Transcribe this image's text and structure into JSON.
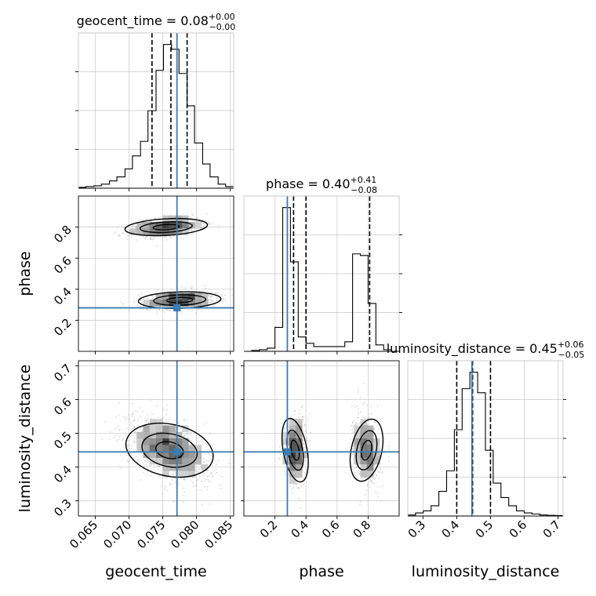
{
  "chart_data": {
    "type": "corner",
    "parameters": [
      {
        "name": "geocent_time",
        "axis_label": "geocent_time",
        "title": {
          "prefix": "geocent_time = ",
          "value": "0.08",
          "plus": "+0.00",
          "minus": "−0.00"
        },
        "range": [
          0.0625,
          0.0855
        ],
        "ticks": [
          0.065,
          0.07,
          0.075,
          0.08,
          0.085
        ],
        "tick_labels": [
          "0.065",
          "0.070",
          "0.075",
          "0.080",
          "0.085"
        ],
        "truth": 0.0771,
        "quantiles": [
          0.0734,
          0.0762,
          0.0786
        ],
        "hist_bins": [
          0.0625,
          0.0636,
          0.0648,
          0.0659,
          0.0671,
          0.0682,
          0.0694,
          0.0705,
          0.0717,
          0.0728,
          0.074,
          0.0751,
          0.0763,
          0.0774,
          0.0786,
          0.0797,
          0.0809,
          0.082,
          0.0832,
          0.0843,
          0.0855
        ],
        "hist_values": [
          0.5,
          1,
          1.5,
          2.5,
          4.5,
          7,
          12,
          20,
          29,
          48,
          73,
          89,
          86,
          71,
          51,
          28,
          15,
          7,
          2.5,
          1
        ]
      },
      {
        "name": "phase",
        "axis_label": "phase",
        "title": {
          "prefix": "phase = ",
          "value": "0.40",
          "plus": "+0.41",
          "minus": "−0.08"
        },
        "range": [
          0.0,
          1.0
        ],
        "ticks": [
          0.2,
          0.4,
          0.6,
          0.8
        ],
        "tick_labels": [
          "0.2",
          "0.4",
          "0.6",
          "0.8"
        ],
        "truth": 0.28,
        "quantiles": [
          0.32,
          0.4,
          0.81
        ],
        "hist_bins": [
          0.0,
          0.05,
          0.1,
          0.15,
          0.2,
          0.25,
          0.3,
          0.35,
          0.4,
          0.45,
          0.5,
          0.55,
          0.6,
          0.65,
          0.7,
          0.75,
          0.8,
          0.85,
          0.9,
          0.95,
          1.0
        ],
        "hist_values": [
          0,
          0.5,
          1,
          2,
          15,
          90,
          56,
          9,
          5,
          3,
          3,
          3,
          3,
          6,
          61,
          60,
          30,
          4,
          1,
          0
        ]
      },
      {
        "name": "luminosity_distance",
        "axis_label": "luminosity_distance",
        "title": {
          "prefix": "luminosity_distance = ",
          "value": "0.45",
          "plus": "+0.06",
          "minus": "−0.05"
        },
        "range": [
          0.255,
          0.715
        ],
        "ticks": [
          0.3,
          0.4,
          0.5,
          0.6,
          0.7
        ],
        "tick_labels": [
          "0.3",
          "0.4",
          "0.5",
          "0.6",
          "0.7"
        ],
        "truth": 0.445,
        "quantiles": [
          0.4,
          0.447,
          0.5
        ],
        "hist_bins": [
          0.255,
          0.278,
          0.301,
          0.324,
          0.347,
          0.37,
          0.393,
          0.416,
          0.439,
          0.462,
          0.485,
          0.508,
          0.531,
          0.554,
          0.577,
          0.6,
          0.623,
          0.646,
          0.669,
          0.692,
          0.715
        ],
        "hist_values": [
          0.5,
          1.5,
          2.5,
          5,
          12,
          22,
          42,
          62,
          70,
          60,
          32,
          16,
          9,
          5,
          2.5,
          1.5,
          1,
          0.5,
          0.3,
          0.2
        ]
      }
    ],
    "contour_levels": 3,
    "grid": true
  }
}
